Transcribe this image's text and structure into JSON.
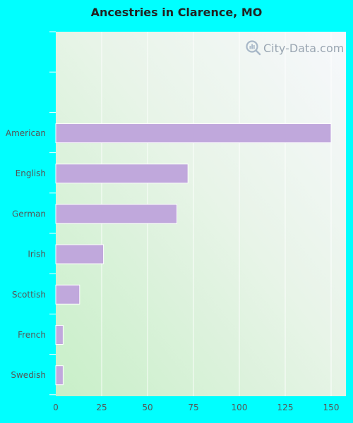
{
  "title": "Ancestries in Clarence, MO",
  "watermark": "City-Data.com",
  "colors": {
    "background": "#00ffff",
    "bar": "#c0a8dc",
    "axis_text": "#555555",
    "plot_bg_top_right": "#f7f8fc",
    "plot_bg_bottom_left": "#c8efc8"
  },
  "chart_data": {
    "type": "bar",
    "orientation": "horizontal",
    "title": "Ancestries in Clarence, MO",
    "categories": [
      "American",
      "English",
      "German",
      "Irish",
      "Scottish",
      "French",
      "Swedish"
    ],
    "values": [
      150,
      72,
      66,
      26,
      13,
      4,
      4
    ],
    "xlim": [
      0,
      160
    ],
    "xticks": [
      0,
      25,
      50,
      75,
      100,
      125,
      150
    ],
    "xtick_labels": [
      "0",
      "25",
      "50",
      "75",
      "100",
      "125",
      "150"
    ],
    "xlabel": "",
    "ylabel": "",
    "grid": true,
    "legend": "none"
  }
}
